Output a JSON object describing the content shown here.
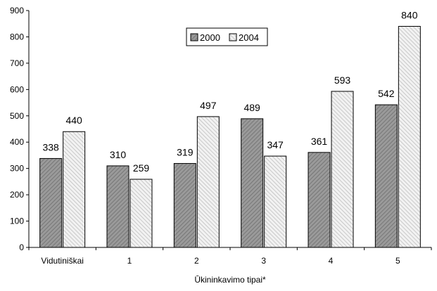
{
  "chart_data": {
    "type": "bar",
    "categories": [
      "Vidutiniškai",
      "1",
      "2",
      "3",
      "4",
      "5"
    ],
    "series": [
      {
        "name": "2000",
        "values": [
          338,
          310,
          319,
          489,
          361,
          542
        ],
        "color": "#8c8c8c",
        "pattern": "dark-diagonal"
      },
      {
        "name": "2004",
        "values": [
          440,
          259,
          497,
          347,
          593,
          840
        ],
        "color": "#d9d9d9",
        "pattern": "light-diagonal"
      }
    ],
    "title": "",
    "xlabel": "Ūkininkavimo tipai*",
    "ylabel": "",
    "ylim": [
      0,
      900
    ],
    "yticks": [
      0,
      100,
      200,
      300,
      400,
      500,
      600,
      700,
      800,
      900
    ],
    "legend_position": "top-center",
    "grid": false
  }
}
